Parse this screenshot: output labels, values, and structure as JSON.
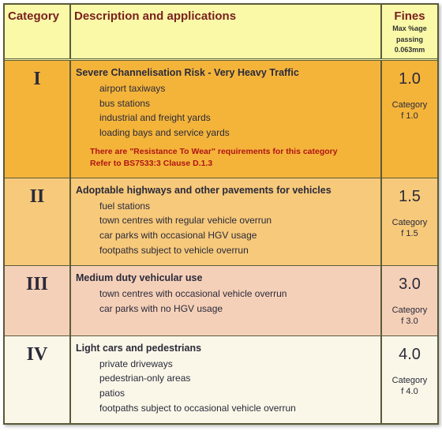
{
  "header": {
    "category": "Category",
    "description": "Description and applications",
    "fines": "Fines",
    "fines_sub1": "Max %age",
    "fines_sub2": "passing",
    "fines_sub3": "0.063mm",
    "bg": "#f9f9a8"
  },
  "rows": [
    {
      "bg": "#f4b43a",
      "cat": "I",
      "title": "Severe Channelisation Risk - Very Heavy Traffic",
      "items": [
        "airport taxiways",
        "bus stations",
        "industrial and freight yards",
        "loading bays and service yards"
      ],
      "note1": "There are \"Resistance To Wear\" requirements for this category",
      "note2": "Refer to BS7533:3 Clause D.1.3",
      "fines_val": "1.0",
      "fines_label1": "Category",
      "fines_label2": "f 1.0"
    },
    {
      "bg": "#f7c97a",
      "cat": "II",
      "title": "Adoptable highways and other pavements for vehicles",
      "items": [
        "fuel stations",
        "town centres with regular vehicle overrun",
        "car parks with occasional HGV usage",
        "footpaths subject to vehicle overrun"
      ],
      "note1": "",
      "note2": "",
      "fines_val": "1.5",
      "fines_label1": "Category",
      "fines_label2": "f 1.5"
    },
    {
      "bg": "#f5d0b8",
      "cat": "III",
      "title": "Medium duty vehicular use",
      "items": [
        "town centres with occasional vehicle overrun",
        "car parks with no HGV usage"
      ],
      "note1": "",
      "note2": "",
      "fines_val": "3.0",
      "fines_label1": "Category",
      "fines_label2": "f 3.0"
    },
    {
      "bg": "#faf7e8",
      "cat": "IV",
      "title": "Light cars and pedestrians",
      "items": [
        "private driveways",
        "pedestrian-only areas",
        "patios",
        "footpaths subject to occasional vehicle overrun"
      ],
      "note1": "",
      "note2": "",
      "fines_val": "4.0",
      "fines_label1": "Category",
      "fines_label2": "f 4.0"
    }
  ]
}
